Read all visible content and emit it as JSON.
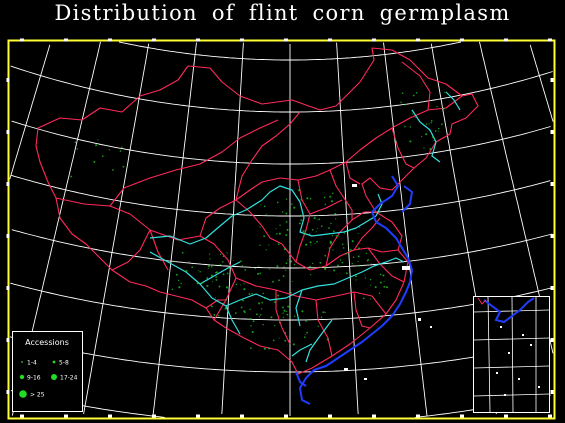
{
  "title": "Distribution of flint corn germplasm",
  "legend": {
    "heading": "Accessions",
    "items": [
      {
        "label": "1-4",
        "symbol": "small-dot"
      },
      {
        "label": "5-8",
        "symbol": "dot"
      },
      {
        "label": "9-16",
        "symbol": "medium-dot"
      },
      {
        "label": "17-24",
        "symbol": "large-dot"
      },
      {
        "label": "> 25",
        "symbol": "largest-dot"
      }
    ]
  },
  "colors": {
    "background": "#000000",
    "frame": "#ffff33",
    "graticule": "#ffffff",
    "province_border": "#ff2a5a",
    "river": "#33e0e0",
    "coastline": "#1f3dff",
    "accession_dot": "#22dd22"
  }
}
